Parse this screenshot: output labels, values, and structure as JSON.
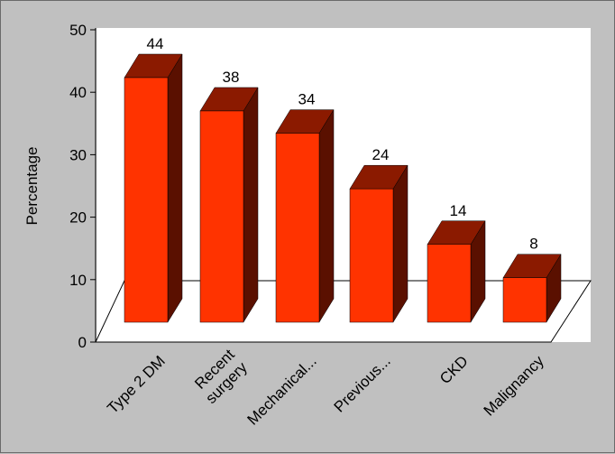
{
  "chart_data": {
    "type": "bar",
    "title": "",
    "xlabel": "",
    "ylabel": "Percentage",
    "ylim": [
      0,
      50
    ],
    "yticks": [
      0,
      10,
      20,
      30,
      40,
      50
    ],
    "grid": false,
    "style": "3d",
    "categories": [
      "Type 2 DM",
      "Recent surgery",
      "Mechanical...",
      "Previous...",
      "CKD",
      "Malignancy"
    ],
    "category_lines": [
      [
        "Type 2 DM"
      ],
      [
        "Recent",
        "surgery"
      ],
      [
        "Mechanical..."
      ],
      [
        "Previous..."
      ],
      [
        "CKD"
      ],
      [
        "Malignancy"
      ]
    ],
    "values": [
      44,
      38,
      34,
      24,
      14,
      8
    ],
    "colors": {
      "background": "#c0c0c0",
      "plot_area": "#ffffff",
      "bar_front": "#ff3300",
      "bar_top": "#8b1a00",
      "bar_side": "#5a1000"
    }
  }
}
